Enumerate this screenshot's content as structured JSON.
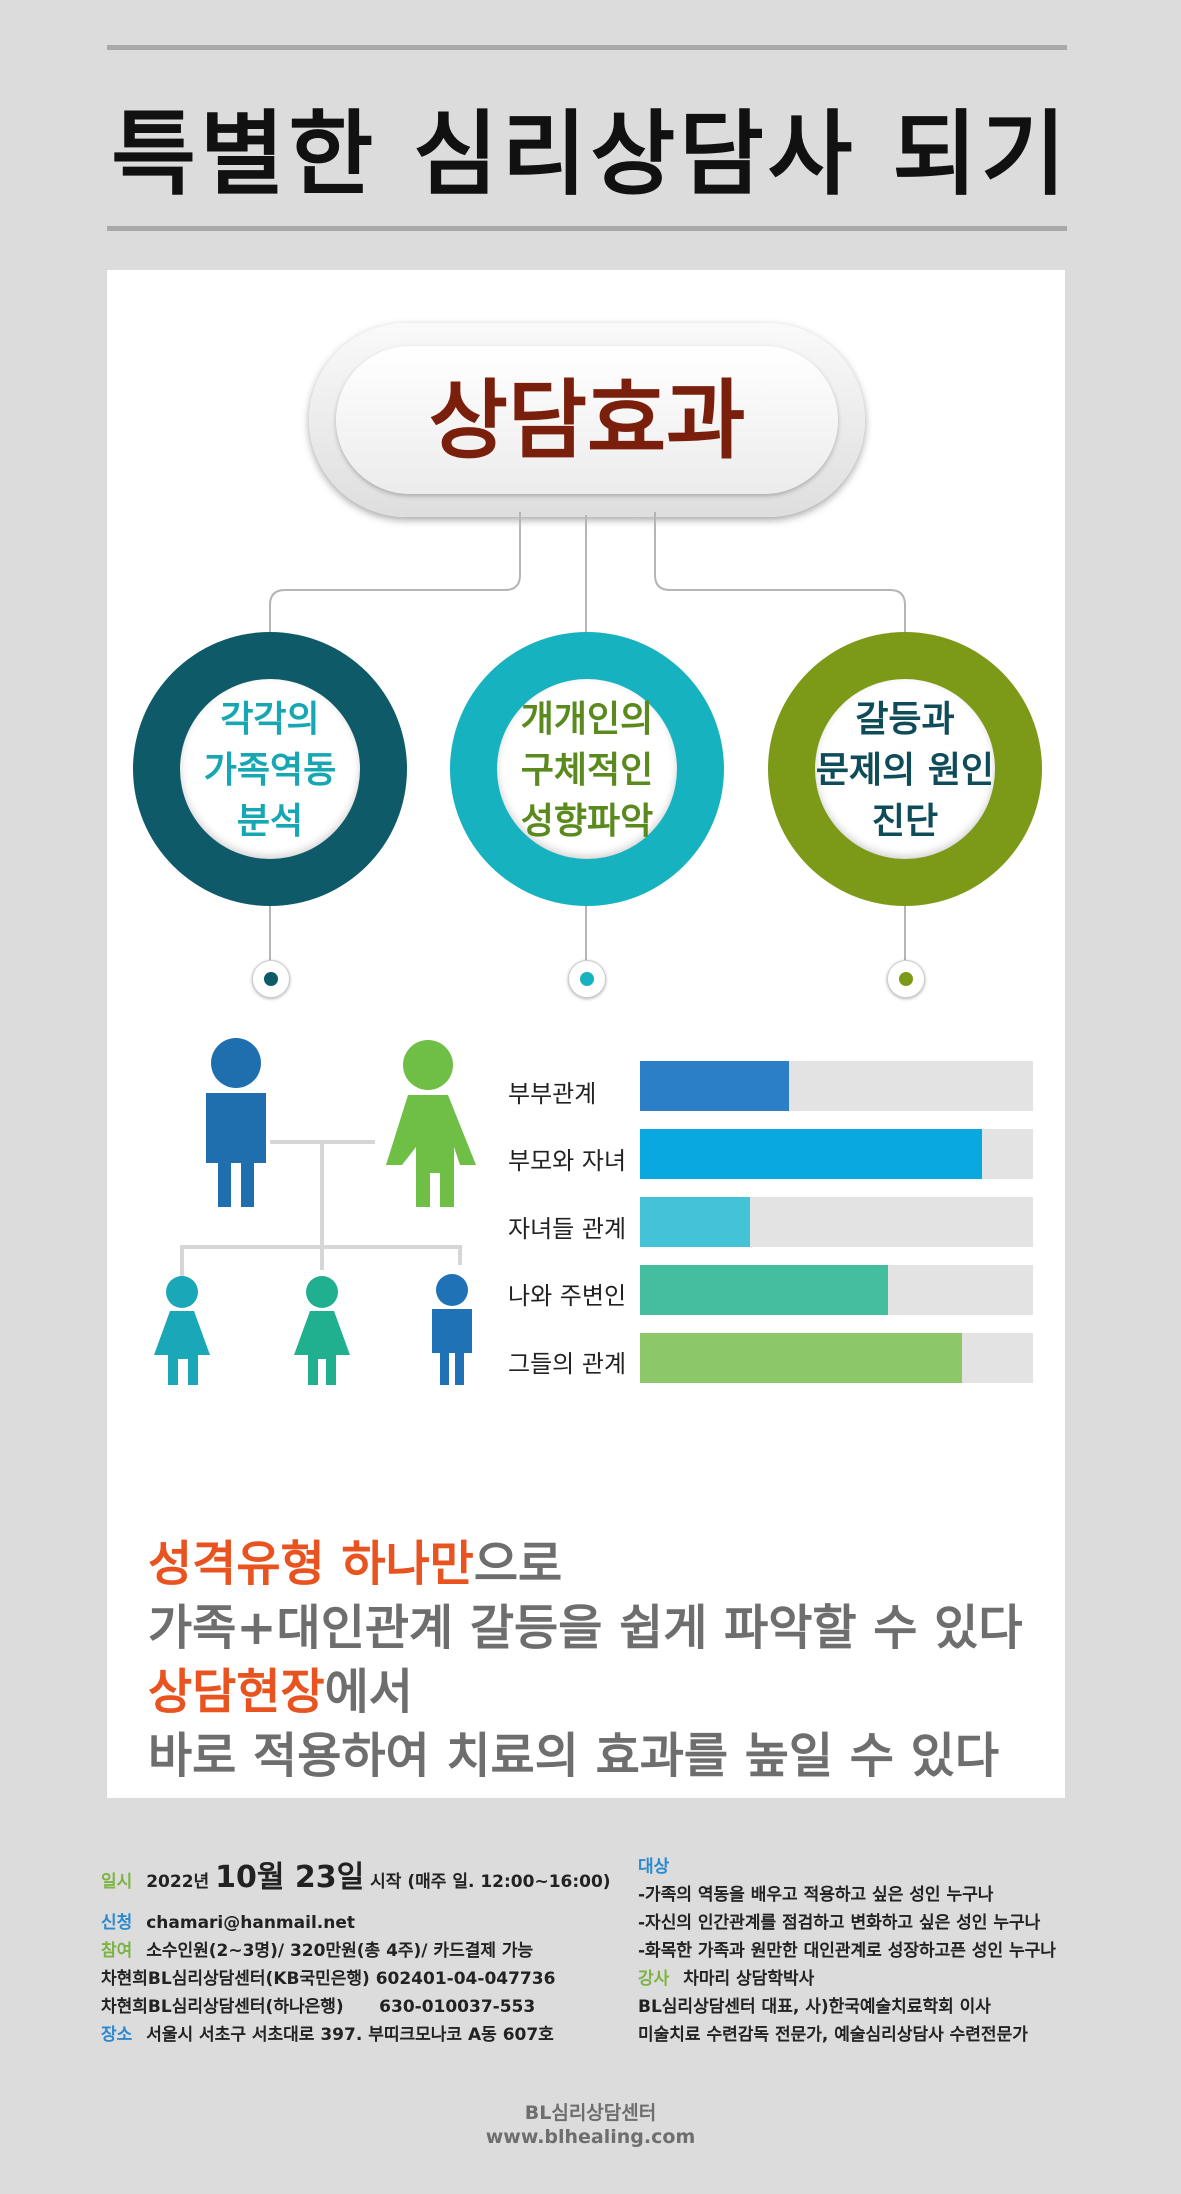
{
  "header": {
    "title": "특별한 심리상담사 되기"
  },
  "hero": {
    "title": "상담효과"
  },
  "effects": [
    {
      "lines": [
        "각각의",
        "가족역동",
        "분석"
      ],
      "ring_color": "#0e5a69",
      "text_color": "#16a7b3"
    },
    {
      "lines": [
        "개개인의",
        "구체적인",
        "성향파악"
      ],
      "ring_color": "#17b2bf",
      "text_color": "#5a8a1e"
    },
    {
      "lines": [
        "갈등과",
        "문제의 원인",
        "진단"
      ],
      "ring_color": "#7c9a18",
      "text_color": "#0e4c5a"
    }
  ],
  "family_icons": [
    "male-person-icon",
    "female-person-icon",
    "child-girl-icon",
    "child-girl-icon",
    "child-boy-icon"
  ],
  "chart_data": {
    "type": "bar",
    "categories": [
      "부부관계",
      "부모와 자녀",
      "자녀들 관계",
      "나와 주변인",
      "그들의 관계"
    ],
    "values": [
      0.38,
      0.87,
      0.28,
      0.63,
      0.82
    ],
    "colors": [
      "#2a7fc6",
      "#0aa8e0",
      "#45c3d6",
      "#43bf9f",
      "#8cc86a"
    ]
  },
  "message": {
    "line1_hl": "성격유형 하나만",
    "line1_rest": "으로",
    "line2": "가족+대인관계 갈등을 쉽게 파악할 수 있다",
    "line3_hl": "상담현장",
    "line3_rest": "에서",
    "line4": "바로 적용하여 치료의 효과를 높일 수 있다"
  },
  "info": {
    "date_label": "일시",
    "date_year": "2022년",
    "date_big": "10월 23일",
    "date_rest": "시작 (매주 일. 12:00~16:00)",
    "apply_label": "신청",
    "apply_value": "chamari@hanmail.net",
    "join_label": "참여",
    "join_value": "소수인원(2~3명)/ 320만원(총 4주)/ 카드결제 가능",
    "bank1": "차현희BL심리상담센터(KB국민은행)  602401-04-047736",
    "bank2": "차현희BL심리상담센터(하나은행)      630-010037-553",
    "place_label": "장소",
    "place_value": "서울시 서초구 서초대로 397. 부띠크모나코 A동 607호",
    "target_label": "대상",
    "targets": [
      "-가족의 역동을 배우고 적용하고 싶은 성인 누구나",
      "-자신의 인간관계를 점검하고 변화하고 싶은 성인 누구나",
      "-화목한 가족과 원만한 대인관계로 성장하고픈 성인 누구나"
    ],
    "lecturer_label": "강사",
    "lecturer_name": "차마리 상담학박사",
    "lecturer_lines": [
      "BL심리상담센터 대표, 사)한국예술치료학회 이사",
      "미술치료 수련감독 전문가, 예술심리상담사 수련전문가"
    ]
  },
  "footer": {
    "org": "BL심리상담센터",
    "url": "www.blhealing.com"
  }
}
